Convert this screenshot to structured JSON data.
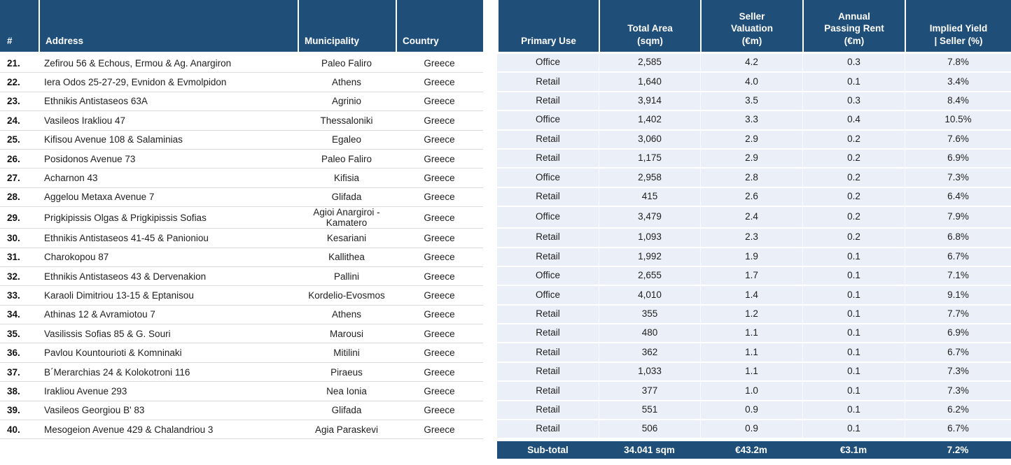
{
  "colors": {
    "header_bg": "#1F4E79",
    "row_blue": "#EBF0F8",
    "separator_gray": "#DBDBDB",
    "header_text": "#FFFFFF"
  },
  "header": {
    "num": "#",
    "address": "Address",
    "municipality": "Municipality",
    "country": "Country",
    "primary_use": "Primary Use",
    "total_area": "Total Area\n(sqm)",
    "seller_valuation": "Seller\nValuation\n(€m)",
    "annual_rent": "Annual\nPassing Rent\n(€m)",
    "implied_yield": "Implied Yield\n| Seller (%)"
  },
  "rows": [
    {
      "num": "21.",
      "address": "Zefirou 56 & Echous, Ermou & Ag. Anargiron",
      "municipality": "Paleo Faliro",
      "country": "Greece",
      "primary_use": "Office",
      "total_area": "2,585",
      "seller_valuation": "4.2",
      "annual_rent": "0.3",
      "implied_yield": "7.8%"
    },
    {
      "num": "22.",
      "address": "Iera Odos 25-27-29, Evnidon & Evmolpidon",
      "municipality": "Athens",
      "country": "Greece",
      "primary_use": "Retail",
      "total_area": "1,640",
      "seller_valuation": "4.0",
      "annual_rent": "0.1",
      "implied_yield": "3.4%"
    },
    {
      "num": "23.",
      "address": "Ethnikis Antistaseos 63A",
      "municipality": "Agrinio",
      "country": "Greece",
      "primary_use": "Retail",
      "total_area": "3,914",
      "seller_valuation": "3.5",
      "annual_rent": "0.3",
      "implied_yield": "8.4%"
    },
    {
      "num": "24.",
      "address": "Vasileos Irakliou 47",
      "municipality": "Thessaloniki",
      "country": "Greece",
      "primary_use": "Office",
      "total_area": "1,402",
      "seller_valuation": "3.3",
      "annual_rent": "0.4",
      "implied_yield": "10.5%"
    },
    {
      "num": "25.",
      "address": "Kifisou Avenue 108 & Salaminias",
      "municipality": "Egaleo",
      "country": "Greece",
      "primary_use": "Retail",
      "total_area": "3,060",
      "seller_valuation": "2.9",
      "annual_rent": "0.2",
      "implied_yield": "7.6%"
    },
    {
      "num": "26.",
      "address": "Posidonos Avenue 73",
      "municipality": "Paleo Faliro",
      "country": "Greece",
      "primary_use": "Retail",
      "total_area": "1,175",
      "seller_valuation": "2.9",
      "annual_rent": "0.2",
      "implied_yield": "6.9%"
    },
    {
      "num": "27.",
      "address": "Acharnon 43",
      "municipality": "Kifisia",
      "country": "Greece",
      "primary_use": "Office",
      "total_area": "2,958",
      "seller_valuation": "2.8",
      "annual_rent": "0.2",
      "implied_yield": "7.3%"
    },
    {
      "num": "28.",
      "address": "Aggelou Metaxa Avenue 7",
      "municipality": "Glifada",
      "country": "Greece",
      "primary_use": "Retail",
      "total_area": "415",
      "seller_valuation": "2.6",
      "annual_rent": "0.2",
      "implied_yield": "6.4%"
    },
    {
      "num": "29.",
      "address": "Prigkipissis Olgas & Prigkipissis Sofias",
      "municipality": "Agioi Anargiroi - Kamatero",
      "country": "Greece",
      "primary_use": "Office",
      "total_area": "3,479",
      "seller_valuation": "2.4",
      "annual_rent": "0.2",
      "implied_yield": "7.9%"
    },
    {
      "num": "30.",
      "address": "Ethnikis Antistaseos 41-45 & Panioniou",
      "municipality": "Kesariani",
      "country": "Greece",
      "primary_use": "Retail",
      "total_area": "1,093",
      "seller_valuation": "2.3",
      "annual_rent": "0.2",
      "implied_yield": "6.8%"
    },
    {
      "num": "31.",
      "address": "Charokopou 87",
      "municipality": "Kallithea",
      "country": "Greece",
      "primary_use": "Retail",
      "total_area": "1,992",
      "seller_valuation": "1.9",
      "annual_rent": "0.1",
      "implied_yield": "6.7%"
    },
    {
      "num": "32.",
      "address": "Ethnikis Antistaseos 43 & Dervenakion",
      "municipality": "Pallini",
      "country": "Greece",
      "primary_use": "Office",
      "total_area": "2,655",
      "seller_valuation": "1.7",
      "annual_rent": "0.1",
      "implied_yield": "7.1%"
    },
    {
      "num": "33.",
      "address": "Karaoli Dimitriou 13-15 & Eptanisou",
      "municipality": "Kordelio-Evosmos",
      "country": "Greece",
      "primary_use": "Office",
      "total_area": "4,010",
      "seller_valuation": "1.4",
      "annual_rent": "0.1",
      "implied_yield": "9.1%"
    },
    {
      "num": "34.",
      "address": "Athinas 12 & Avramiotou 7",
      "municipality": "Athens",
      "country": "Greece",
      "primary_use": "Retail",
      "total_area": "355",
      "seller_valuation": "1.2",
      "annual_rent": "0.1",
      "implied_yield": "7.7%"
    },
    {
      "num": "35.",
      "address": "Vasilissis Sofias 85 & G. Souri",
      "municipality": "Marousi",
      "country": "Greece",
      "primary_use": "Retail",
      "total_area": "480",
      "seller_valuation": "1.1",
      "annual_rent": "0.1",
      "implied_yield": "6.9%"
    },
    {
      "num": "36.",
      "address": "Pavlou Kountourioti & Komninaki",
      "municipality": "Mitilini",
      "country": "Greece",
      "primary_use": "Retail",
      "total_area": "362",
      "seller_valuation": "1.1",
      "annual_rent": "0.1",
      "implied_yield": "6.7%"
    },
    {
      "num": "37.",
      "address": "B΄Merarchias 24 & Kolokotroni 116",
      "municipality": "Piraeus",
      "country": "Greece",
      "primary_use": "Retail",
      "total_area": "1,033",
      "seller_valuation": "1.1",
      "annual_rent": "0.1",
      "implied_yield": "7.3%"
    },
    {
      "num": "38.",
      "address": "Irakliou Avenue 293",
      "municipality": "Nea Ionia",
      "country": "Greece",
      "primary_use": "Retail",
      "total_area": "377",
      "seller_valuation": "1.0",
      "annual_rent": "0.1",
      "implied_yield": "7.3%"
    },
    {
      "num": "39.",
      "address": "Vasileos Georgiou B' 83",
      "municipality": "Glifada",
      "country": "Greece",
      "primary_use": "Retail",
      "total_area": "551",
      "seller_valuation": "0.9",
      "annual_rent": "0.1",
      "implied_yield": "6.2%"
    },
    {
      "num": "40.",
      "address": "Mesogeion Avenue 429 & Chalandriou 3",
      "municipality": "Agia Paraskevi",
      "country": "Greece",
      "primary_use": "Retail",
      "total_area": "506",
      "seller_valuation": "0.9",
      "annual_rent": "0.1",
      "implied_yield": "6.7%"
    }
  ],
  "subtotal": {
    "label": "Sub-total",
    "total_area": "34.041 sqm",
    "seller_valuation": "€43.2m",
    "annual_rent": "€3.1m",
    "implied_yield": "7.2%"
  }
}
